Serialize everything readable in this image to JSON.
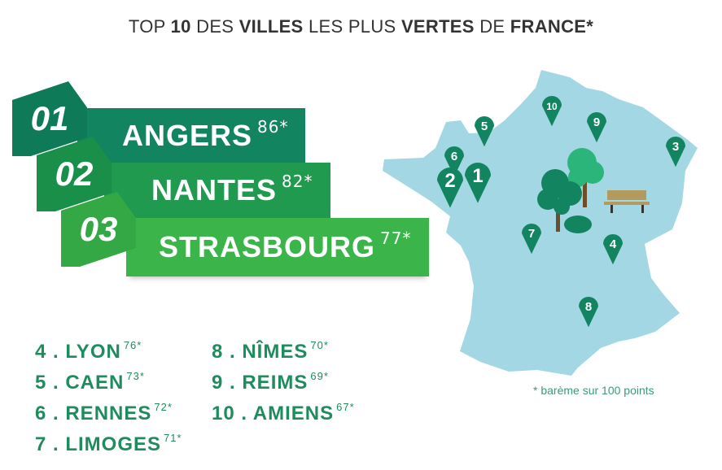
{
  "title": {
    "prefix": "TOP",
    "num": "10",
    "mid1": "DES",
    "w1": "VILLES",
    "mid2": "LES PLUS",
    "w2": "VERTES",
    "mid3": "DE",
    "w3": "FRANCE*"
  },
  "podium": [
    {
      "rank": "01",
      "city": "ANGERS",
      "score": "86*",
      "color": "#12845f",
      "tab": "#0f7a57"
    },
    {
      "rank": "02",
      "city": "NANTES",
      "score": "82*",
      "color": "#1f9a4f",
      "tab": "#1a8f49"
    },
    {
      "rank": "03",
      "city": "STRASBOURG",
      "score": "77*",
      "color": "#3bb54a",
      "tab": "#33a845"
    }
  ],
  "list_left": [
    {
      "label": "4 . LYON",
      "score": "76*"
    },
    {
      "label": "5 . CAEN",
      "score": "73*"
    },
    {
      "label": "6 . RENNES",
      "score": "72*"
    },
    {
      "label": "7 . LIMOGES",
      "score": "71*"
    }
  ],
  "list_right": [
    {
      "label": "8 . NÎMES",
      "score": "70*"
    },
    {
      "label": "9 . REIMS",
      "score": "69*"
    },
    {
      "label": "10 . AMIENS",
      "score": "67*"
    }
  ],
  "map": {
    "color": "#a3d7e3",
    "pin_color": "#12845f",
    "pins": [
      "10",
      "5",
      "9",
      "3",
      "6",
      "2",
      "1",
      "7",
      "4",
      "8"
    ]
  },
  "note": "* barème sur 100 points"
}
